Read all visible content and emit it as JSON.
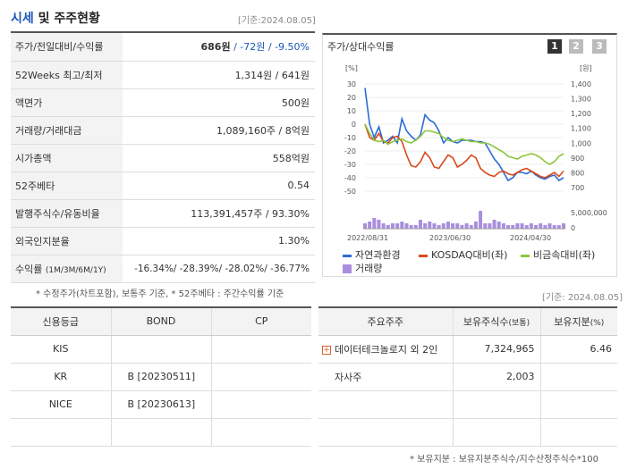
{
  "header": {
    "title_part1": "시세",
    "title_part2": " 및 주주현황",
    "base_date": "[기준:2024.08.05]"
  },
  "info_rows": [
    {
      "label": "주가/전일대비/수익률",
      "value_main": "686원",
      "value_rest": " / -72원 / -9.50%"
    },
    {
      "label": "52Weeks 최고/최저",
      "value": "1,314원 / 641원"
    },
    {
      "label": "액면가",
      "value": "500원"
    },
    {
      "label": "거래량/거래대금",
      "value": "1,089,160주 / 8억원"
    },
    {
      "label": "시가총액",
      "value": "558억원"
    },
    {
      "label": "52주베타",
      "value": "0.54"
    },
    {
      "label": "발행주식수/유동비율",
      "value": "113,391,457주 / 93.30%"
    },
    {
      "label": "외국인지분율",
      "value": "1.30%"
    },
    {
      "label": "수익률",
      "label_sub": "(1M/3M/6M/1Y)",
      "value": "-16.34%/ -28.39%/ -28.02%/ -36.77%"
    }
  ],
  "note1": "* 수정주가(차트포함), 보통주 기준, * 52주베타 : 주간수익률 기준",
  "chart": {
    "title": "주가/상대수익률",
    "period_buttons": [
      "1",
      "2",
      "3"
    ],
    "left_unit": "[%]",
    "right_unit": "[원]",
    "left_ticks": [
      "30",
      "20",
      "10",
      "0",
      "-10",
      "-20",
      "-30",
      "-40",
      "-50"
    ],
    "right_ticks": [
      "1,400",
      "1,300",
      "1,200",
      "1,100",
      "1,000",
      "900",
      "800",
      "700"
    ],
    "volume_tick": "5,000,000",
    "volume_zero": "0",
    "x_ticks": [
      "2022/08/31",
      "2023/06/30",
      "2024/04/30"
    ],
    "legend": [
      "자연과환경",
      "KOSDAQ대비(좌)",
      "비금속대비(좌)",
      "거래량"
    ],
    "colors": {
      "stock": "#2a6bd6",
      "kosdaq": "#d94a1e",
      "sector": "#8cc63e",
      "volume": "#a98ee0"
    }
  },
  "chart_data": {
    "type": "line",
    "x": [
      0,
      1,
      2,
      3,
      4,
      5,
      6,
      7,
      8,
      9,
      10,
      11,
      12,
      13,
      14,
      15,
      16,
      17,
      18,
      19,
      20,
      21,
      22,
      23,
      24,
      25,
      26,
      27,
      28,
      29,
      30,
      31,
      32,
      33,
      34,
      35,
      36,
      37,
      38,
      39,
      40,
      41,
      42,
      43
    ],
    "series": [
      {
        "name": "자연과환경",
        "values": [
          27,
          0,
          -10,
          -2,
          -14,
          -12,
          -9,
          -14,
          4,
          -5,
          -9,
          -12,
          -8,
          7,
          3,
          1,
          -5,
          -14,
          -10,
          -13,
          -14,
          -12,
          -12,
          -12,
          -13,
          -13,
          -14,
          -20,
          -26,
          -30,
          -36,
          -42,
          -40,
          -36,
          -36,
          -37,
          -35,
          -38,
          -40,
          -41,
          -39,
          -38,
          -42,
          -40
        ]
      },
      {
        "name": "KOSDAQ대비(좌)",
        "values": [
          0,
          -10,
          -12,
          -7,
          -13,
          -14,
          -10,
          -9,
          -13,
          -23,
          -31,
          -32,
          -28,
          -21,
          -25,
          -32,
          -33,
          -28,
          -23,
          -25,
          -32,
          -30,
          -27,
          -23,
          -25,
          -33,
          -36,
          -38,
          -39,
          -36,
          -35,
          -37,
          -38,
          -36,
          -34,
          -33,
          -35,
          -37,
          -39,
          -40,
          -38,
          -36,
          -39,
          -35
        ]
      },
      {
        "name": "비금속대비(좌)",
        "values": [
          0,
          -7,
          -12,
          -13,
          -12,
          -15,
          -13,
          -12,
          -11,
          -13,
          -14,
          -12,
          -9,
          -5,
          -5,
          -6,
          -7,
          -10,
          -12,
          -13,
          -12,
          -11,
          -12,
          -13,
          -13,
          -14,
          -14,
          -15,
          -17,
          -19,
          -21,
          -24,
          -25,
          -26,
          -24,
          -23,
          -22,
          -23,
          -25,
          -28,
          -30,
          -28,
          -24,
          -22
        ]
      }
    ],
    "volume": [
      3,
      4,
      6,
      5,
      3,
      2,
      3,
      3,
      4,
      3,
      2,
      2,
      5,
      3,
      4,
      3,
      2,
      3,
      4,
      3,
      3,
      2,
      3,
      2,
      4,
      10,
      3,
      3,
      5,
      4,
      3,
      2,
      2,
      3,
      3,
      2,
      3,
      2,
      3,
      2,
      3,
      2,
      2,
      3
    ],
    "xlabel_ticks": [
      "2022/08/31",
      "2023/06/30",
      "2024/04/30"
    ],
    "ylim_left": [
      -50,
      30
    ],
    "ylim_right": [
      700,
      1400
    ]
  },
  "credit": {
    "headers": [
      "신용등급",
      "BOND",
      "CP"
    ],
    "rows": [
      {
        "agency": "KIS",
        "bond": "",
        "cp": ""
      },
      {
        "agency": "KR",
        "bond": "B  [20230511]",
        "cp": ""
      },
      {
        "agency": "NICE",
        "bond": "B  [20230613]",
        "cp": ""
      },
      {
        "agency": "",
        "bond": "",
        "cp": ""
      }
    ]
  },
  "shareholders": {
    "base_date": "[기준: 2024.08.05]",
    "headers": [
      "주요주주",
      "보유주식수",
      "(보통)",
      "보유지분",
      "(%)"
    ],
    "rows": [
      {
        "name": "데이터테크놀로지 외 2인",
        "shares": "7,324,965",
        "pct": "6.46",
        "expandable": true
      },
      {
        "name": "자사주",
        "shares": "2,003",
        "pct": "",
        "expandable": false
      },
      {
        "name": "",
        "shares": "",
        "pct": "",
        "expandable": false
      },
      {
        "name": "",
        "shares": "",
        "pct": "",
        "expandable": false
      }
    ],
    "note": "* 보유지분 : 보유지분주식수/지수산정주식수*100"
  }
}
